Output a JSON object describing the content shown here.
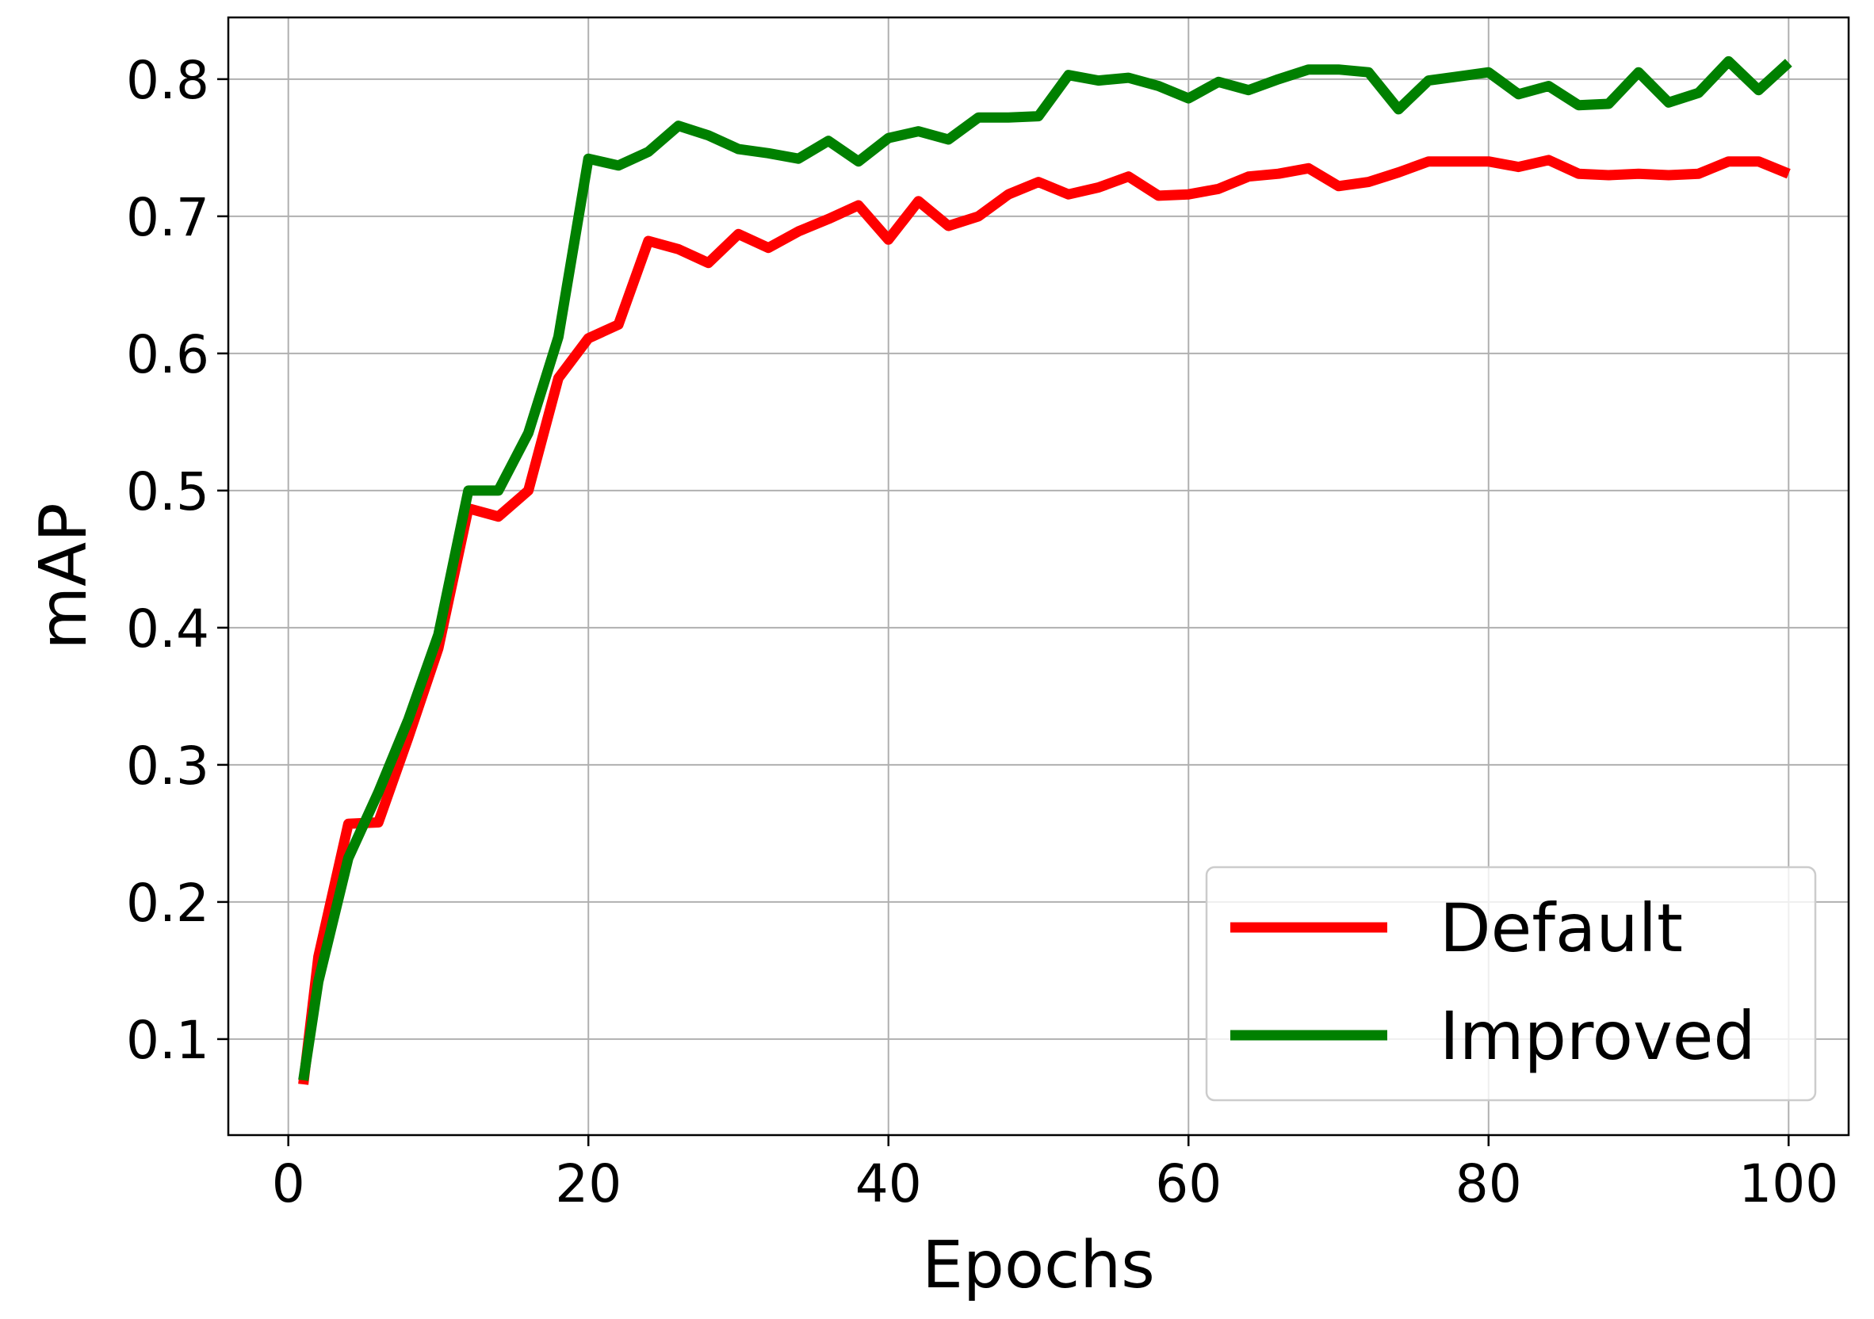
{
  "chart_data": {
    "type": "line",
    "xlabel": "Epochs",
    "ylabel": "mAP",
    "xlim": [
      -4,
      104
    ],
    "ylim": [
      0.03,
      0.845
    ],
    "xticks": [
      0,
      20,
      40,
      60,
      80,
      100
    ],
    "yticks": [
      0.1,
      0.2,
      0.3,
      0.4,
      0.5,
      0.6,
      0.7,
      0.8
    ],
    "grid": true,
    "legend_position": "lower-right",
    "x": [
      1,
      2,
      4,
      6,
      8,
      10,
      12,
      14,
      16,
      18,
      20,
      22,
      24,
      26,
      28,
      30,
      32,
      34,
      36,
      38,
      40,
      42,
      44,
      46,
      48,
      50,
      52,
      54,
      56,
      58,
      60,
      62,
      64,
      66,
      68,
      70,
      72,
      74,
      76,
      78,
      80,
      82,
      84,
      86,
      88,
      90,
      92,
      94,
      96,
      98,
      100
    ],
    "series": [
      {
        "name": "Default",
        "color": "#ff0000",
        "values": [
          0.067,
          0.16,
          0.257,
          0.258,
          0.32,
          0.385,
          0.487,
          0.481,
          0.5,
          0.582,
          0.611,
          0.621,
          0.682,
          0.676,
          0.666,
          0.687,
          0.677,
          0.689,
          0.698,
          0.708,
          0.683,
          0.711,
          0.693,
          0.7,
          0.716,
          0.725,
          0.716,
          0.721,
          0.729,
          0.715,
          0.716,
          0.72,
          0.729,
          0.731,
          0.735,
          0.722,
          0.725,
          0.732,
          0.74,
          0.74,
          0.74,
          0.736,
          0.741,
          0.731,
          0.73,
          0.731,
          0.73,
          0.731,
          0.74,
          0.74,
          0.731
        ]
      },
      {
        "name": "Improved",
        "color": "#008000",
        "values": [
          0.07,
          0.142,
          0.232,
          0.28,
          0.333,
          0.395,
          0.5,
          0.5,
          0.542,
          0.612,
          0.742,
          0.737,
          0.747,
          0.766,
          0.759,
          0.749,
          0.746,
          0.742,
          0.755,
          0.74,
          0.757,
          0.762,
          0.756,
          0.772,
          0.772,
          0.773,
          0.803,
          0.799,
          0.801,
          0.795,
          0.786,
          0.798,
          0.792,
          0.8,
          0.807,
          0.807,
          0.805,
          0.778,
          0.799,
          0.802,
          0.805,
          0.789,
          0.795,
          0.781,
          0.782,
          0.805,
          0.783,
          0.79,
          0.813,
          0.792,
          0.812
        ]
      }
    ]
  }
}
